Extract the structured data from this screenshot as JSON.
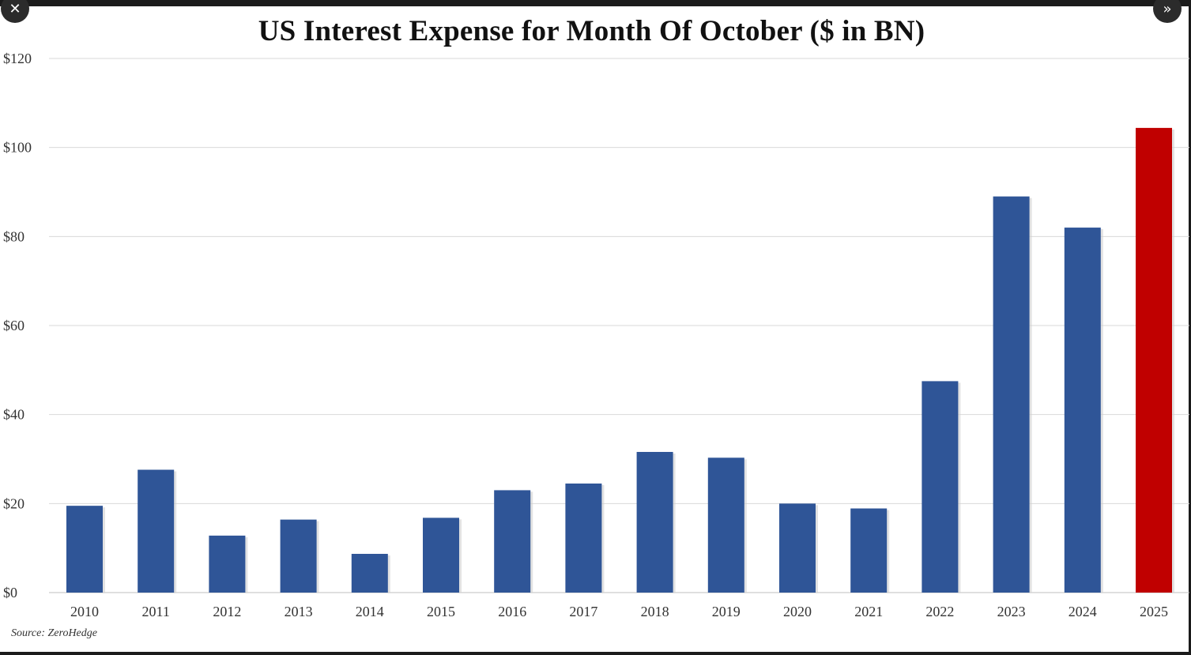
{
  "controls": {
    "close_glyph": "✕",
    "expand_glyph": "»",
    "close_icon": "close-icon",
    "expand_icon": "double-chevron-right-icon"
  },
  "chart_data": {
    "type": "bar",
    "title": "US Interest Expense for Month Of October ($ in BN)",
    "source": "Source: ZeroHedge",
    "categories": [
      "2010",
      "2011",
      "2012",
      "2013",
      "2014",
      "2015",
      "2016",
      "2017",
      "2018",
      "2019",
      "2020",
      "2021",
      "2022",
      "2023",
      "2024",
      "2025"
    ],
    "values": [
      19.5,
      27.6,
      12.8,
      16.4,
      8.7,
      16.8,
      23.0,
      24.5,
      31.6,
      30.3,
      20.0,
      18.9,
      47.5,
      89.0,
      82.0,
      104.4
    ],
    "ylim": [
      0,
      120
    ],
    "yticks": [
      0,
      20,
      40,
      60,
      80,
      100,
      120
    ],
    "ytick_labels": [
      "$0",
      "$20",
      "$40",
      "$60",
      "$80",
      "$100",
      "$120"
    ],
    "grid": true,
    "colors": {
      "bar": "#2f5597",
      "highlight": "#c00000",
      "grid": "#d9d9d9"
    },
    "highlight_category": "2025",
    "xlabel": "",
    "ylabel": ""
  }
}
